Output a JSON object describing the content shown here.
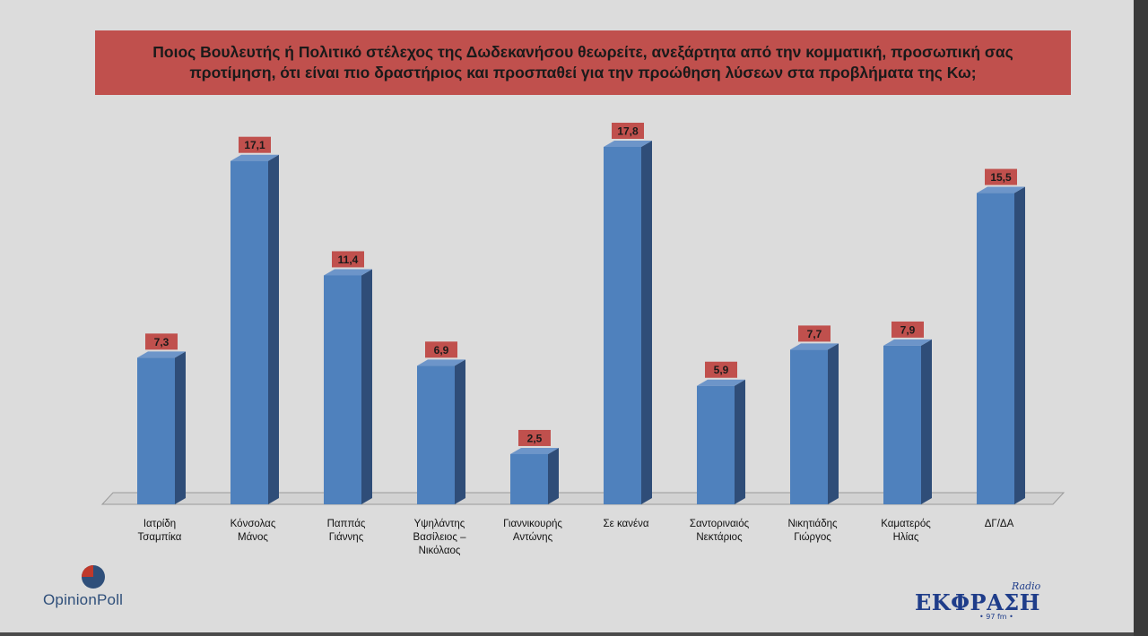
{
  "title": "Ποιος Βουλευτής ή Πολιτικό στέλεχος της Δωδεκανήσου θεωρείτε, ανεξάρτητα από την κομματική, προσωπική σας προτίμηση, ότι είναι πιο δραστήριος και προσπαθεί για την προώθηση λύσεων στα προβλήματα της Κω;",
  "colors": {
    "bar_front": "#4f81bd",
    "bar_side": "#2f4d78",
    "bar_top": "#6d95c9",
    "label_box": "#c0504d",
    "title_box": "#c0504d"
  },
  "chart_data": {
    "type": "bar",
    "title": "Ποιος Βουλευτής ή Πολιτικό στέλεχος της Δωδεκανήσου θεωρείτε, ανεξάρτητα από την κομματική, προσωπική σας προτίμηση, ότι είναι πιο δραστήριος και προσπαθεί για την προώθηση λύσεων στα προβλήματα της Κω;",
    "categories": [
      [
        "Ιατρίδη",
        "Τσαμπίκα"
      ],
      [
        "Κόνσολας",
        "Μάνος"
      ],
      [
        "Παππάς",
        "Γιάννης"
      ],
      [
        "Υψηλάντης",
        "Βασίλειος –",
        "Νικόλαος"
      ],
      [
        "Γιαννικουρής",
        "Αντώνης"
      ],
      [
        "Σε κανένα"
      ],
      [
        "Σαντοριναιός",
        "Νεκτάριος"
      ],
      [
        "Νικητιάδης",
        "Γιώργος"
      ],
      [
        "Καματερός",
        "Ηλίας"
      ],
      [
        "ΔΓ/ΔΑ"
      ]
    ],
    "values": [
      7.3,
      17.1,
      11.4,
      6.9,
      2.5,
      17.8,
      5.9,
      7.7,
      7.9,
      15.5
    ],
    "value_labels": [
      "7,3",
      "17,1",
      "11,4",
      "6,9",
      "2,5",
      "17,8",
      "5,9",
      "7,7",
      "7,9",
      "15,5"
    ],
    "xlabel": "",
    "ylabel": "",
    "ylim": [
      0,
      17.8
    ],
    "grid": false,
    "legend": "none",
    "style": "3d-column"
  },
  "logos": {
    "left": {
      "name": "OpinionPoll"
    },
    "right": {
      "name": "ΕΚΦΡΑΣΗ",
      "sub": "Radio",
      "freq": "• 97 fm •"
    }
  }
}
